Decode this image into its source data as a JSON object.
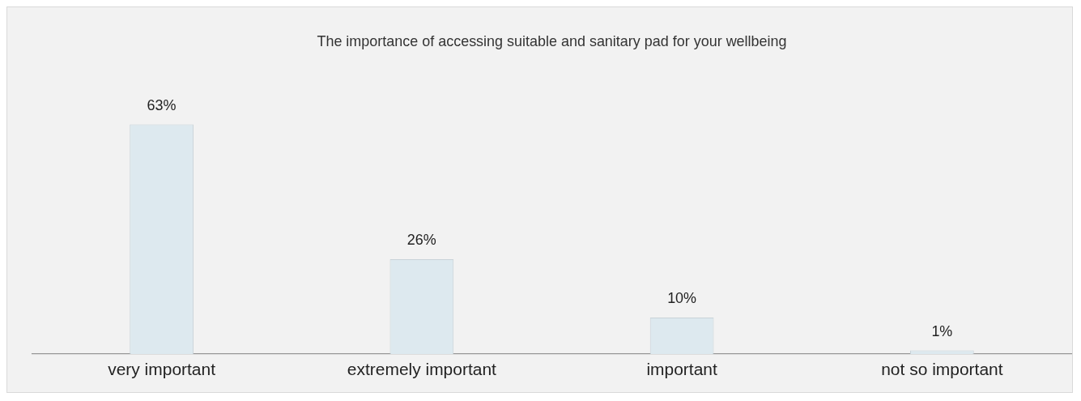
{
  "chart_data": {
    "type": "bar",
    "title": "The importance of accessing suitable and sanitary pad for your wellbeing",
    "categories": [
      "very important",
      "extremely important",
      "important",
      "not so important"
    ],
    "values": [
      63,
      26,
      10,
      1
    ],
    "value_labels": [
      "63%",
      "26%",
      "10%",
      "1%"
    ],
    "color": "#dde9ef",
    "grid": false,
    "legend": false
  }
}
